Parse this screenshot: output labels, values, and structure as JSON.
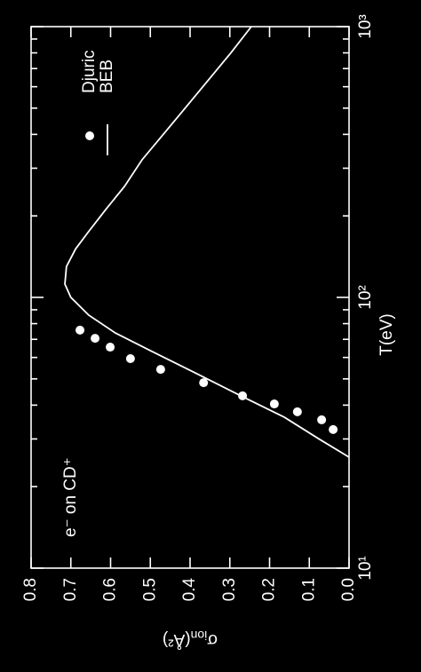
{
  "chart_data": {
    "type": "scatter-line",
    "xlabel": "T(eV)",
    "ylabel": {
      "symbol": "σ",
      "subscript": "ion",
      "unit": "(Å²)"
    },
    "annotation": "e⁻ on CD⁺",
    "xlog": true,
    "xlim": [
      10,
      1000
    ],
    "xticks": [
      {
        "value": 10,
        "label": "10¹"
      },
      {
        "value": 100,
        "label": "10²"
      },
      {
        "value": 1000,
        "label": "10³"
      }
    ],
    "ylim": [
      0,
      0.8
    ],
    "yticks": [
      {
        "value": 0,
        "label": "0.0"
      },
      0.1,
      0.2,
      0.3,
      0.4,
      0.5,
      0.6,
      0.7,
      0.8
    ],
    "series": [
      {
        "name": "Djuric",
        "kind": "scatter",
        "color": "#ffffff",
        "x": [
          32.5,
          35.3,
          37.8,
          40.4,
          43.3,
          48.4,
          54.2,
          59.4,
          65.5,
          70.6,
          75.7
        ],
        "values": [
          0.04,
          0.069,
          0.13,
          0.188,
          0.268,
          0.366,
          0.474,
          0.55,
          0.601,
          0.639,
          0.677
        ]
      },
      {
        "name": "BEB",
        "kind": "line",
        "color": "#ffffff",
        "x": [
          25.7,
          29.9,
          36.1,
          43.5,
          52.6,
          63.5,
          73.9,
          86,
          100,
          112,
          130,
          151,
          176,
          213,
          257,
          322,
          404,
          507,
          635,
          798,
          1000
        ],
        "values": [
          0,
          0.074,
          0.163,
          0.275,
          0.387,
          0.499,
          0.588,
          0.655,
          0.7,
          0.715,
          0.711,
          0.688,
          0.654,
          0.61,
          0.565,
          0.521,
          0.465,
          0.409,
          0.354,
          0.298,
          0.246
        ]
      }
    ]
  }
}
